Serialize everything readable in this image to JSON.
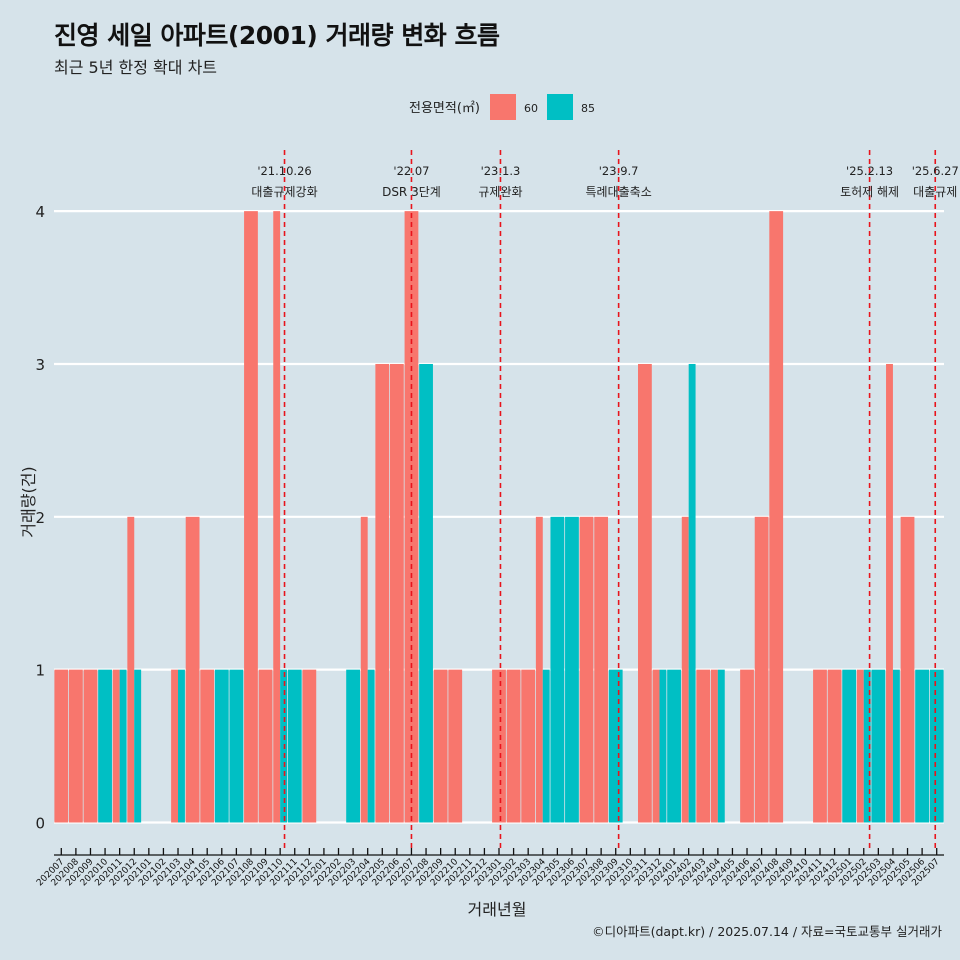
{
  "header": {
    "title": "진영 세일 아파트(2001) 거래량 변화 흐름",
    "subtitle": "최근 5년 한정 확대 차트"
  },
  "caption": "©디아파트(dapt.kr) / 2025.07.14 / 자료=국토교통부 실거래가",
  "colors": {
    "background": "#d6e3ea",
    "series_60": "#f8766d",
    "series_85": "#00bfc4",
    "event_line": "#e8141c",
    "gridline": "#ffffff"
  },
  "chart_data": {
    "type": "bar",
    "title": "진영 세일 아파트(2001) 거래량 변화 흐름",
    "xlabel": "거래년월",
    "ylabel": "거래량(건)",
    "ylim": [
      -0.18,
      4.4
    ],
    "yticks": [
      0,
      1,
      2,
      3,
      4
    ],
    "legend": {
      "title": "전용면적(㎡)",
      "position": "top"
    },
    "categories": [
      "202007",
      "202008",
      "202009",
      "202010",
      "202011",
      "202012",
      "202101",
      "202102",
      "202103",
      "202104",
      "202105",
      "202106",
      "202107",
      "202108",
      "202109",
      "202110",
      "202111",
      "202112",
      "202201",
      "202202",
      "202203",
      "202204",
      "202205",
      "202206",
      "202207",
      "202208",
      "202209",
      "202210",
      "202211",
      "202212",
      "202301",
      "202302",
      "202303",
      "202304",
      "202305",
      "202306",
      "202307",
      "202308",
      "202309",
      "202310",
      "202311",
      "202312",
      "202401",
      "202402",
      "202403",
      "202404",
      "202405",
      "202406",
      "202407",
      "202408",
      "202409",
      "202410",
      "202411",
      "202412",
      "202501",
      "202502",
      "202503",
      "202504",
      "202505",
      "202506",
      "202507"
    ],
    "series": [
      {
        "name": "60",
        "values": [
          1,
          1,
          1,
          0,
          1,
          2,
          0,
          0,
          1,
          2,
          1,
          0,
          0,
          4,
          1,
          4,
          0,
          1,
          0,
          0,
          0,
          2,
          3,
          3,
          4,
          0,
          1,
          1,
          0,
          0,
          1,
          1,
          1,
          2,
          0,
          0,
          2,
          2,
          0,
          0,
          3,
          1,
          0,
          2,
          1,
          1,
          0,
          1,
          2,
          4,
          0,
          0,
          1,
          1,
          0,
          1,
          0,
          3,
          2,
          0,
          0
        ]
      },
      {
        "name": "85",
        "values": [
          0,
          0,
          0,
          1,
          1,
          1,
          0,
          0,
          1,
          0,
          0,
          1,
          1,
          0,
          0,
          1,
          1,
          0,
          0,
          0,
          1,
          1,
          0,
          0,
          0,
          3,
          0,
          0,
          0,
          0,
          0,
          0,
          0,
          1,
          2,
          2,
          0,
          0,
          1,
          0,
          0,
          1,
          1,
          3,
          0,
          1,
          0,
          0,
          0,
          0,
          0,
          0,
          0,
          0,
          1,
          1,
          1,
          1,
          0,
          1,
          1
        ]
      }
    ],
    "events": [
      {
        "date": "'21.10.26",
        "label": "대출규제강화",
        "position": 15.3
      },
      {
        "date": "'22.07",
        "label": "DSR 3단계",
        "position": 24.0
      },
      {
        "date": "'23.1.3",
        "label": "규제완화",
        "position": 30.1
      },
      {
        "date": "'23.9.7",
        "label": "특례대출축소",
        "position": 38.2
      },
      {
        "date": "'25.2.13",
        "label": "토허제 해제",
        "position": 55.4
      },
      {
        "date": "'25.6.27",
        "label": "대출규제",
        "position": 59.9
      }
    ]
  }
}
